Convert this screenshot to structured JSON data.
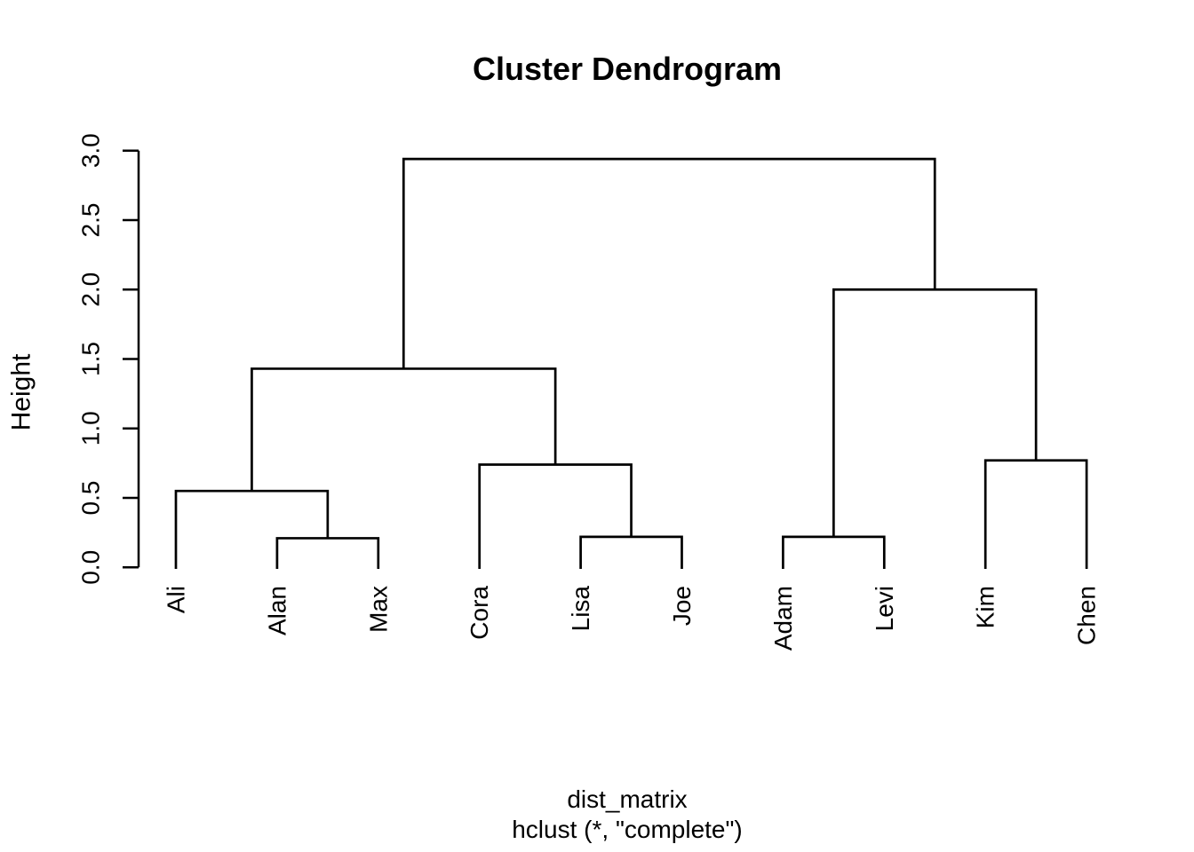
{
  "chart_data": {
    "type": "dendrogram",
    "title": "Cluster Dendrogram",
    "ylabel": "Height",
    "caption_line1": "dist_matrix",
    "caption_line2": "hclust (*, \"complete\")",
    "ylim": [
      0,
      3
    ],
    "yticks": [
      0.0,
      0.5,
      1.0,
      1.5,
      2.0,
      2.5,
      3.0
    ],
    "ytick_labels": [
      "0.0",
      "0.5",
      "1.0",
      "1.5",
      "2.0",
      "2.5",
      "3.0"
    ],
    "leaves": [
      "Ali",
      "Alan",
      "Max",
      "Cora",
      "Lisa",
      "Joe",
      "Adam",
      "Levi",
      "Kim",
      "Chen"
    ],
    "merges": [
      {
        "id": "n1",
        "children": [
          "Alan",
          "Max"
        ],
        "height": 0.21
      },
      {
        "id": "n2",
        "children": [
          "Lisa",
          "Joe"
        ],
        "height": 0.22
      },
      {
        "id": "n3",
        "children": [
          "Adam",
          "Levi"
        ],
        "height": 0.22
      },
      {
        "id": "n4",
        "children": [
          "Ali",
          "n1"
        ],
        "height": 0.55
      },
      {
        "id": "n5",
        "children": [
          "Cora",
          "n2"
        ],
        "height": 0.74
      },
      {
        "id": "n6",
        "children": [
          "Kim",
          "Chen"
        ],
        "height": 0.77
      },
      {
        "id": "n7",
        "children": [
          "n4",
          "n5"
        ],
        "height": 1.43
      },
      {
        "id": "n8",
        "children": [
          "n3",
          "n6"
        ],
        "height": 2.0
      },
      {
        "id": "n9",
        "children": [
          "n7",
          "n8"
        ],
        "height": 2.94
      }
    ],
    "line_color": "#000000",
    "background_color": "#ffffff",
    "legend": "none",
    "grid": false
  }
}
